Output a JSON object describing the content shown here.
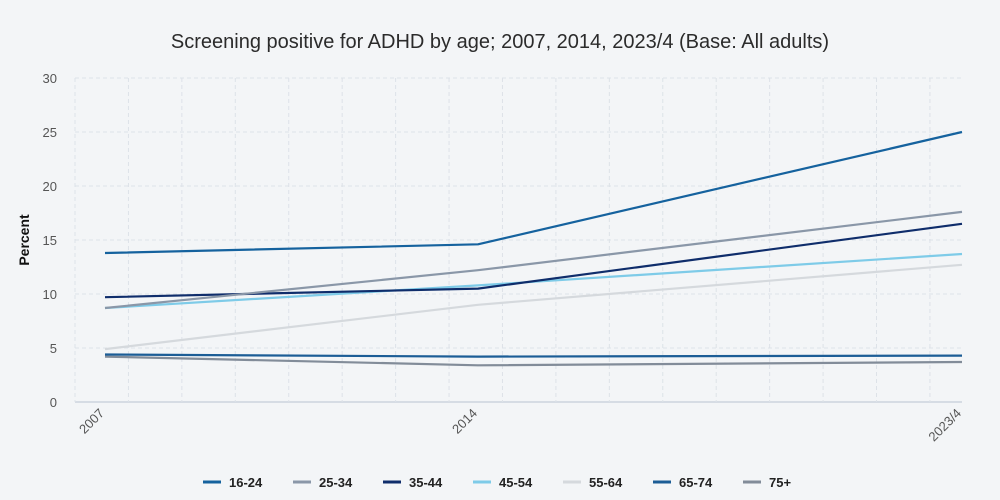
{
  "chart_data": {
    "type": "line",
    "title": "Screening positive for ADHD by age; 2007, 2014, 2023/4 (Base: All adults)",
    "ylabel": "Percent",
    "xlabel": "",
    "categories": [
      "2007",
      "2014",
      "2023/4"
    ],
    "yticks": [
      "0",
      "5",
      "10",
      "15",
      "20",
      "25",
      "30"
    ],
    "ylim": [
      0,
      30
    ],
    "grid": true,
    "legend_position": "bottom",
    "series": [
      {
        "name": "16-24",
        "color": "#15629e",
        "values": [
          13.8,
          14.6,
          25.0
        ]
      },
      {
        "name": "25-34",
        "color": "#8a97a8",
        "values": [
          8.7,
          12.2,
          17.6
        ]
      },
      {
        "name": "35-44",
        "color": "#0f2d6b",
        "values": [
          9.7,
          10.5,
          16.5
        ]
      },
      {
        "name": "45-54",
        "color": "#7ecbe8",
        "values": [
          8.7,
          10.8,
          13.7
        ]
      },
      {
        "name": "55-64",
        "color": "#d5d9dd",
        "values": [
          4.9,
          9.0,
          12.7
        ]
      },
      {
        "name": "65-74",
        "color": "#1c5d96",
        "values": [
          4.4,
          4.2,
          4.3
        ]
      },
      {
        "name": "75+",
        "color": "#828c99",
        "values": [
          4.2,
          3.4,
          3.7
        ]
      }
    ]
  }
}
